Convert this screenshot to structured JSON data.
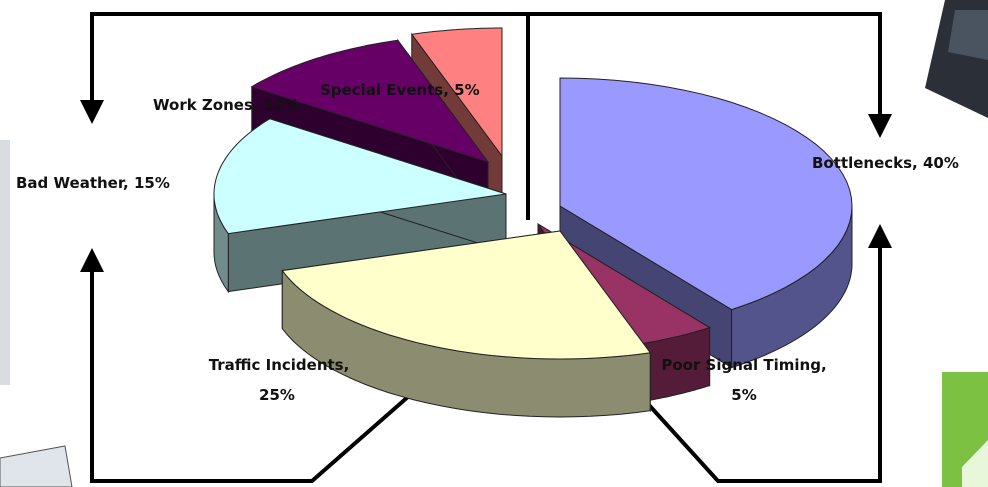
{
  "chart_data": {
    "type": "pie",
    "style": "3d-exploded",
    "categories": [
      "Bottlenecks",
      "Poor Signal Timing",
      "Traffic Incidents",
      "Bad Weather",
      "Work Zones",
      "Special Events"
    ],
    "values": [
      40,
      5,
      25,
      15,
      10,
      5
    ],
    "unit": "%",
    "data_labels": {
      "bottlenecks": "Bottlenecks, 40%",
      "poor_signal_line1": "Poor Signal Timing,",
      "poor_signal_line2": "5%",
      "traffic_line1": "Traffic Incidents,",
      "traffic_line2": "25%",
      "bad_weather": "Bad Weather, 15%",
      "work_zones": "Work Zones, 10%",
      "special_events": "Special Events, 5%"
    },
    "colors": {
      "bottlenecks": "#9999ff",
      "poor_signal_timing": "#993366",
      "traffic_incidents": "#ffffcc",
      "bad_weather": "#ccffff",
      "work_zones": "#660066",
      "special_events": "#ff8080"
    },
    "legend": "none",
    "grid": false
  },
  "decor": {
    "flow_arrows": 4,
    "arrow_color": "#000000"
  }
}
